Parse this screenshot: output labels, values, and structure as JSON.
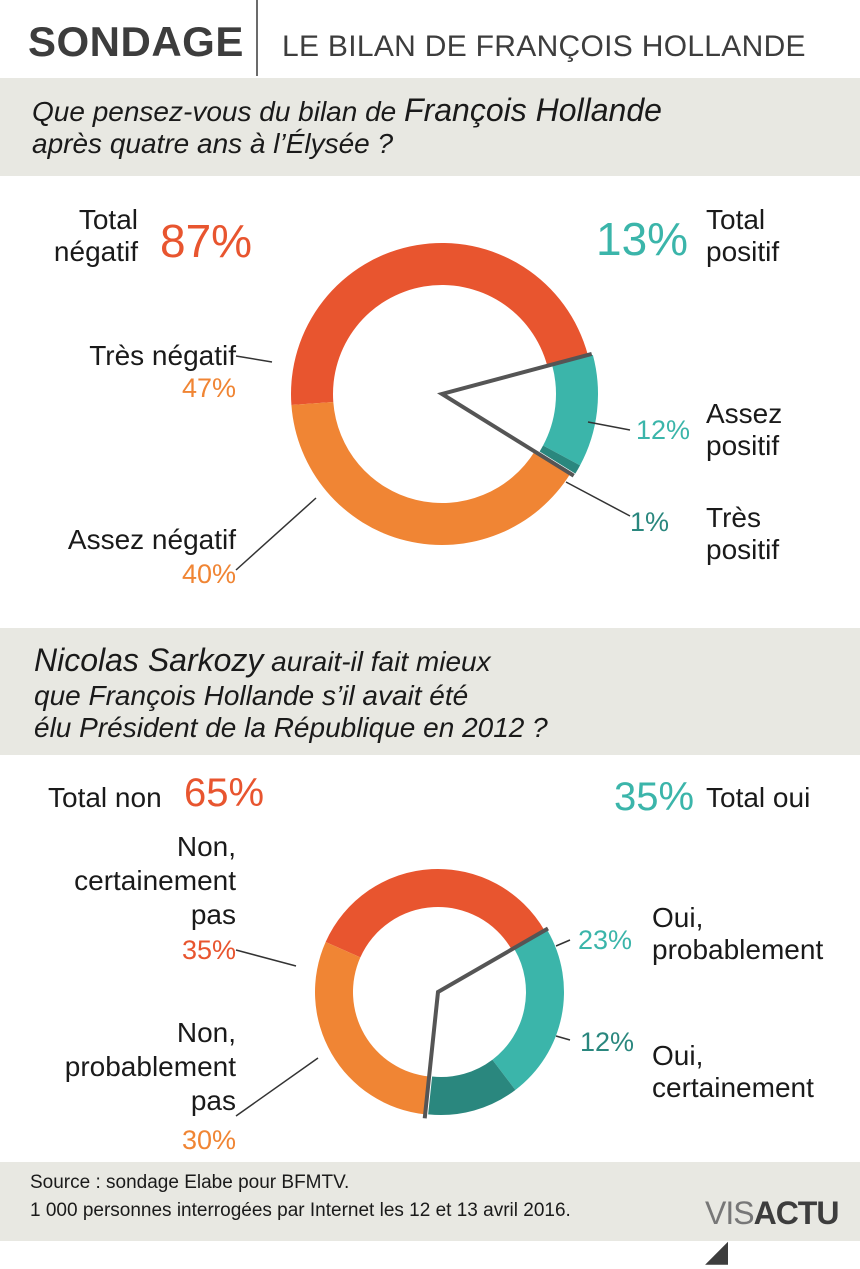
{
  "header": {
    "title": "SONDAGE",
    "subtitle": "LE BILAN DE FRANÇOIS HOLLANDE"
  },
  "q1": {
    "line1_pre": "Que pensez-vous du bilan de ",
    "line1_name": "François Hollande",
    "line2": "après quatre ans à l’Élysée ?"
  },
  "q2": {
    "line1_name": "Nicolas Sarkozy",
    "line1_post": " aurait-il fait mieux",
    "line2": "que François Hollande s’il avait été",
    "line3": "élu Président de la République en 2012 ?"
  },
  "chart1": {
    "total_neg_l1": "Total",
    "total_neg_l2": "négatif",
    "total_neg_pct": "87%",
    "total_pos_l1": "Total",
    "total_pos_l2": "positif",
    "total_pos_pct": "13%",
    "tres_neg_label": "Très négatif",
    "tres_neg_pct": "47%",
    "assez_neg_label": "Assez négatif",
    "assez_neg_pct": "40%",
    "assez_pos_l1": "Assez",
    "assez_pos_l2": "positif",
    "assez_pos_pct": "12%",
    "tres_pos_l1": "Très",
    "tres_pos_l2": "positif",
    "tres_pos_pct": "1%"
  },
  "chart2": {
    "total_non": "Total non",
    "total_non_pct": "65%",
    "total_oui": "Total oui",
    "total_oui_pct": "35%",
    "non_cert_l1": "Non,",
    "non_cert_l2": "certainement",
    "non_cert_l3": "pas",
    "non_cert_pct": "35%",
    "non_prob_l1": "Non,",
    "non_prob_l2": "probablement",
    "non_prob_l3": "pas",
    "non_prob_pct": "30%",
    "oui_prob_l1": "Oui,",
    "oui_prob_l2": "probablement",
    "oui_prob_pct": "23%",
    "oui_cert_l1": "Oui,",
    "oui_cert_l2": "certainement",
    "oui_cert_pct": "12%"
  },
  "source": {
    "line1": "Source : sondage Elabe pour BFMTV.",
    "line2": "1 000 personnes interrogées par Internet les 12 et 13 avril 2016."
  },
  "logo": {
    "vis": "VIS",
    "actu": "ACTU"
  },
  "chart_data": [
    {
      "type": "pie",
      "categories": [
        "Très négatif",
        "Assez négatif",
        "Assez positif",
        "Très positif"
      ],
      "values": [
        47,
        40,
        12,
        1
      ],
      "colors": [
        "#e8552f",
        "#f08534",
        "#3bb5aa",
        "#2a877e"
      ],
      "title": "Que pensez-vous du bilan de François Hollande après quatre ans à l’Élysée ?",
      "totals": {
        "Total négatif": 87,
        "Total positif": 13
      }
    },
    {
      "type": "pie",
      "categories": [
        "Non, certainement pas",
        "Non, probablement pas",
        "Oui, probablement",
        "Oui, certainement"
      ],
      "values": [
        35,
        30,
        23,
        12
      ],
      "colors": [
        "#e8552f",
        "#f08534",
        "#3bb5aa",
        "#2a877e"
      ],
      "title": "Nicolas Sarkozy aurait-il fait mieux que François Hollande s’il avait été élu Président de la République en 2012 ?",
      "totals": {
        "Total non": 65,
        "Total oui": 35
      }
    }
  ]
}
